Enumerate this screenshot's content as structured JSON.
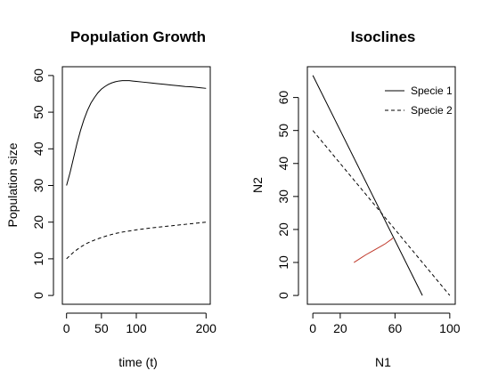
{
  "chart_data": [
    {
      "type": "line",
      "title": "Population Growth",
      "xlabel": "time (t)",
      "ylabel": "Population size",
      "xlim": [
        -6,
        206
      ],
      "ylim": [
        -2.4,
        62.4
      ],
      "xticks": [
        0,
        50,
        100,
        200
      ],
      "yticks": [
        0,
        10,
        20,
        30,
        40,
        50,
        60
      ],
      "grid": false,
      "series": [
        {
          "style": "solid",
          "x": [
            0,
            5,
            10,
            15,
            20,
            25,
            30,
            35,
            40,
            45,
            50,
            55,
            60,
            65,
            70,
            75,
            80,
            85,
            90,
            95,
            100,
            110,
            120,
            130,
            140,
            150,
            160,
            170,
            180,
            190,
            200
          ],
          "y": [
            30,
            33.5,
            37.5,
            41.5,
            45,
            48,
            50.5,
            52.5,
            54,
            55.3,
            56.3,
            57,
            57.6,
            58,
            58.3,
            58.5,
            58.6,
            58.6,
            58.6,
            58.5,
            58.4,
            58.2,
            58,
            57.8,
            57.6,
            57.4,
            57.2,
            57,
            56.9,
            56.7,
            56.5
          ]
        },
        {
          "style": "dashed",
          "x": [
            0,
            10,
            20,
            30,
            40,
            50,
            60,
            70,
            80,
            90,
            100,
            120,
            140,
            160,
            180,
            200
          ],
          "y": [
            10,
            11.8,
            13.2,
            14.3,
            15.1,
            15.8,
            16.4,
            16.9,
            17.3,
            17.6,
            17.9,
            18.4,
            18.8,
            19.2,
            19.6,
            20
          ]
        }
      ]
    },
    {
      "type": "line",
      "title": "Isoclines",
      "xlabel": "N1",
      "ylabel": "N2",
      "xlim": [
        -4,
        104
      ],
      "ylim": [
        -2.67,
        69.33
      ],
      "xticks": [
        0,
        20,
        60,
        100
      ],
      "yticks": [
        0,
        10,
        20,
        30,
        40,
        50,
        60
      ],
      "grid": false,
      "legend": {
        "position": "top-right"
      },
      "series": [
        {
          "name": "Specie 1",
          "style": "solid",
          "color": "#000000",
          "x": [
            0,
            80
          ],
          "y": [
            66.7,
            0
          ]
        },
        {
          "name": "Specie 2",
          "style": "dashed",
          "color": "#000000",
          "x": [
            0,
            100
          ],
          "y": [
            50,
            0
          ]
        },
        {
          "style": "solid",
          "color": "#c0392b",
          "x": [
            30,
            33,
            36,
            39,
            42,
            45,
            48,
            51,
            53,
            55,
            57,
            58.5
          ],
          "y": [
            10,
            10.8,
            11.6,
            12.4,
            13.1,
            13.8,
            14.5,
            15.2,
            15.7,
            16.3,
            16.9,
            17.4
          ]
        }
      ]
    }
  ]
}
